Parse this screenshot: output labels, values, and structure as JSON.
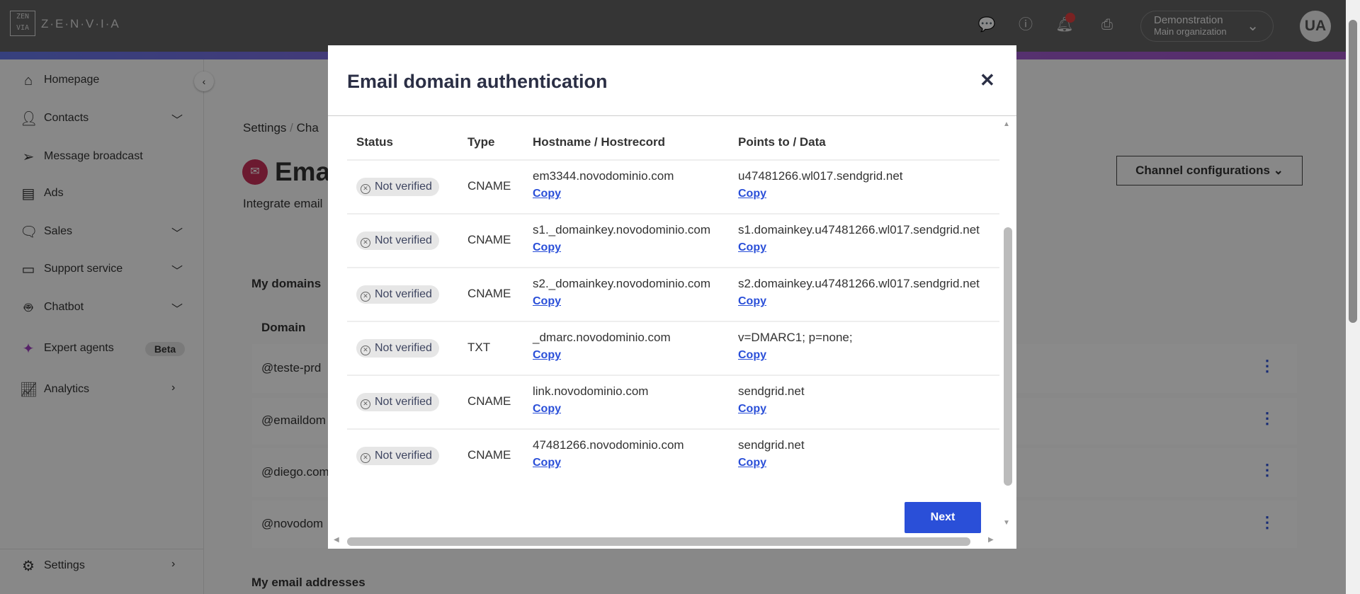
{
  "header": {
    "brand": "Z·E·N·V·I·A",
    "logo_text": "ZEN VIA",
    "org_name": "Demonstration",
    "org_sub": "Main organization",
    "avatar": "UA"
  },
  "sidebar": {
    "items": [
      {
        "label": "Homepage",
        "icon": "home-icon"
      },
      {
        "label": "Contacts",
        "icon": "user-icon"
      },
      {
        "label": "Message broadcast",
        "icon": "send-icon"
      },
      {
        "label": "Ads",
        "icon": "document-icon"
      },
      {
        "label": "Sales",
        "icon": "chat-icon"
      },
      {
        "label": "Support service",
        "icon": "ticket-icon"
      },
      {
        "label": "Chatbot",
        "icon": "robot-icon"
      },
      {
        "label": "Expert agents",
        "icon": "sparkle-icon",
        "badge": "Beta"
      },
      {
        "label": "Analytics",
        "icon": "chart-icon"
      }
    ],
    "settings": "Settings"
  },
  "page": {
    "breadcrumb": [
      "Settings",
      "/",
      "Cha"
    ],
    "title": "Emai",
    "subtitle": "Integrate email",
    "channel_button": "Channel configurations",
    "my_domains": "My domains",
    "domain_header": "Domain",
    "domains": [
      "@teste-prd",
      "@emaildom",
      "@diego.com",
      "@novodom"
    ],
    "my_emails": "My email addresses"
  },
  "modal": {
    "title": "Email domain authentication",
    "columns": [
      "Status",
      "Type",
      "Hostname / Hostrecord",
      "Points to / Data"
    ],
    "rows": [
      {
        "status": "Not verified",
        "type": "CNAME",
        "host": "em3344.novodominio.com",
        "data": "u47481266.wl017.sendgrid.net"
      },
      {
        "status": "Not verified",
        "type": "CNAME",
        "host": "s1._domainkey.novodominio.com",
        "data": "s1.domainkey.u47481266.wl017.sendgrid.net"
      },
      {
        "status": "Not verified",
        "type": "CNAME",
        "host": "s2._domainkey.novodominio.com",
        "data": "s2.domainkey.u47481266.wl017.sendgrid.net"
      },
      {
        "status": "Not verified",
        "type": "TXT",
        "host": "_dmarc.novodominio.com",
        "data": "v=DMARC1; p=none;"
      },
      {
        "status": "Not verified",
        "type": "CNAME",
        "host": "link.novodominio.com",
        "data": "sendgrid.net"
      },
      {
        "status": "Not verified",
        "type": "CNAME",
        "host": "47481266.novodominio.com",
        "data": "sendgrid.net"
      }
    ],
    "copy_label": "Copy",
    "next": "Next"
  },
  "colors": {
    "accent": "#2a4fd8",
    "header": "#353535",
    "email_icon": "#c8305a"
  }
}
